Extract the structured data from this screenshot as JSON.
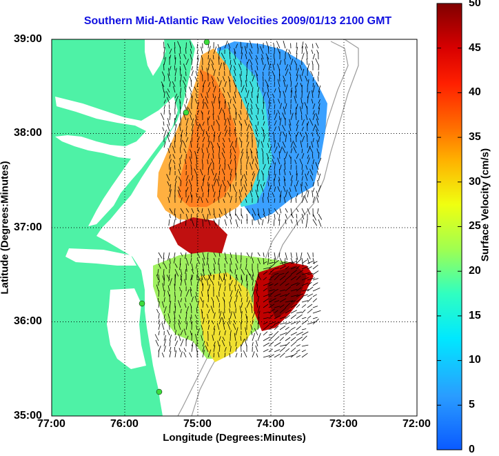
{
  "title": "Southern Mid-Atlantic Raw Velocities 2009/01/13 2100 GMT",
  "x_axis": {
    "label": "Longitude (Degrees:Minutes)",
    "ticks": [
      "77:00",
      "76:00",
      "75:00",
      "74:00",
      "73:00",
      "72:00"
    ]
  },
  "y_axis": {
    "label": "Latitude (Degrees:Minutes)",
    "ticks": [
      "35:00",
      "36:00",
      "37:00",
      "38:00",
      "39:00"
    ]
  },
  "colorbar": {
    "label": "Surface Velocity (cm/s)",
    "ticks": [
      "0",
      "5",
      "10",
      "15",
      "20",
      "25",
      "30",
      "35",
      "40",
      "45",
      "50"
    ],
    "range": [
      0,
      50
    ]
  },
  "colors": {
    "land": "#4ef2a6",
    "title": "#1010e0",
    "station": "#3ddc3d"
  },
  "extent": {
    "lon": [
      -77,
      -72
    ],
    "lat": [
      35,
      39
    ]
  },
  "gridlines": "dotted"
}
